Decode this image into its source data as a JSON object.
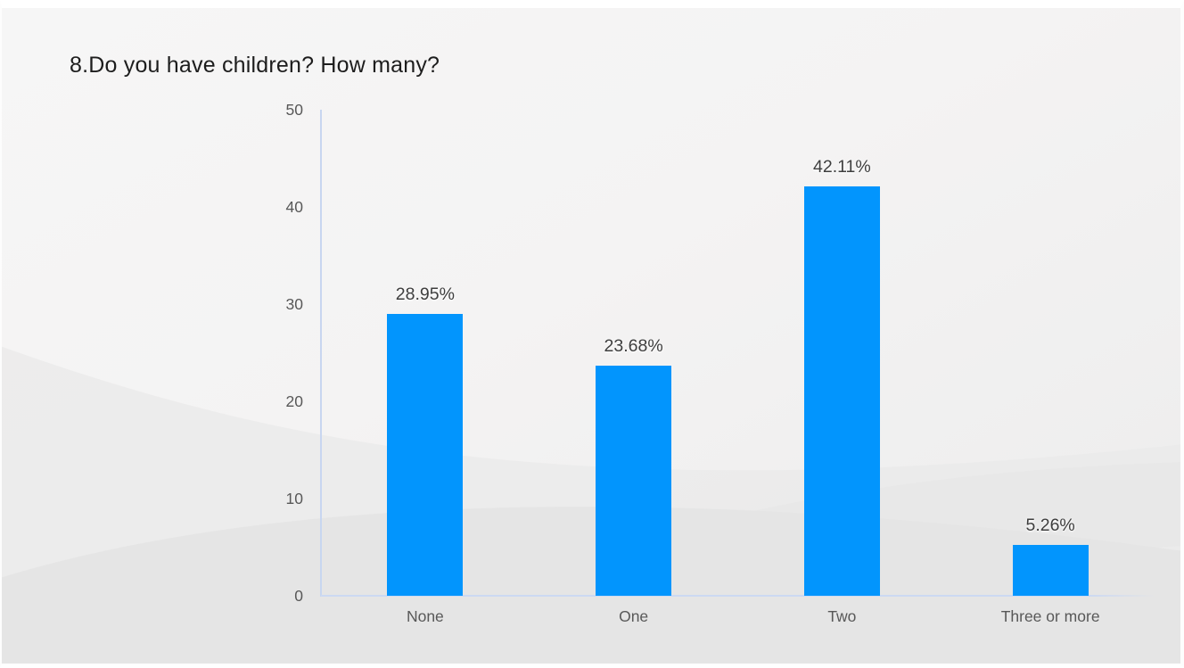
{
  "slide": {
    "title": "8.Do you have children? How many?"
  },
  "chart_data": {
    "type": "bar",
    "title": "8.Do you have children? How many?",
    "categories": [
      "None",
      "One",
      "Two",
      "Three or more"
    ],
    "values": [
      28.95,
      23.68,
      42.11,
      5.26
    ],
    "value_labels": [
      "28.95%",
      "23.68%",
      "42.11%",
      "5.26%"
    ],
    "xlabel": "",
    "ylabel": "",
    "ylim": [
      0,
      50
    ],
    "yticks": [
      0,
      10,
      20,
      30,
      40,
      50
    ],
    "grid": false,
    "legend": false,
    "bar_color": "#0295fd",
    "axis_line_color": "#c8d6f0",
    "tick_label_color": "#585858",
    "data_label_color": "#3e3e3e",
    "title_color": "#1d1d1d",
    "background_color": "#f2f2f2"
  }
}
